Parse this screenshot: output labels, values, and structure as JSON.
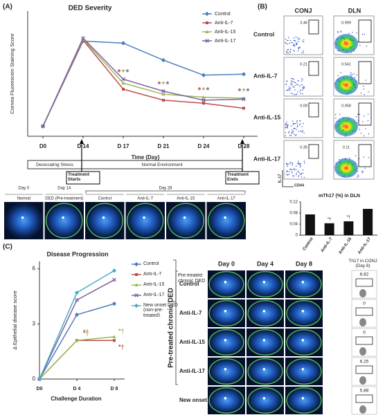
{
  "panel_labels": [
    "(A)",
    "(B)",
    "(C)"
  ],
  "chart_data": [
    {
      "type": "line",
      "title": "DED Severity",
      "y_label": "Cornea Fluorescein Staining Score",
      "x_label": "Time (Day)",
      "categories": [
        "D0",
        "D 14",
        "D 17",
        "D 21",
        "D 24",
        "D 28"
      ],
      "series": [
        {
          "name": "Control",
          "color": "#4a7ebb",
          "values": [
            1,
            9.5,
            9.3,
            7.6,
            6.1,
            6.2
          ]
        },
        {
          "name": "Anti-IL-7",
          "color": "#be4b48",
          "values": [
            1,
            9.6,
            4.7,
            3.6,
            3.3,
            2.8
          ]
        },
        {
          "name": "Anti-IL-15",
          "color": "#98b954",
          "values": [
            1,
            9.7,
            5.3,
            4.2,
            3.9,
            3.8
          ]
        },
        {
          "name": "Anti-IL-17",
          "color": "#7d5fa0",
          "values": [
            1,
            9.8,
            5.7,
            4.5,
            3.6,
            3.7
          ]
        }
      ],
      "ylim": [
        0,
        12.5
      ],
      "yticks": [],
      "annotation": "*",
      "legend": "upper right"
    },
    {
      "type": "bar",
      "title": "mTh17 (%) in DLN",
      "categories": [
        "Control",
        "Anti-IL-7",
        "Anti-IL-15",
        "Anti-IL-17"
      ],
      "values": [
        0.075,
        0.043,
        0.05,
        0.095
      ],
      "color": "#111111",
      "ylim": [
        0,
        0.12
      ],
      "yticks": [
        0,
        0.04,
        0.08,
        0.12
      ],
      "annotation": "*†"
    },
    {
      "type": "line",
      "title": "Disease Progression",
      "y_label": "Δ Epithelial disease score",
      "x_label": "Challenge Duration",
      "categories": [
        "D0",
        "D 4",
        "D 8"
      ],
      "series": [
        {
          "name": "Control",
          "color": "#4a7ebb",
          "values": [
            0,
            3.5,
            4.1
          ]
        },
        {
          "name": "Anti-IL-7",
          "color": "#be4b48",
          "values": [
            0,
            2.1,
            2.1
          ]
        },
        {
          "name": "Anti-IL-15",
          "color": "#98b954",
          "values": [
            0,
            2.1,
            2.3
          ]
        },
        {
          "name": "Anti-IL-17",
          "color": "#7d5fa0",
          "values": [
            0,
            4.3,
            5.4
          ]
        },
        {
          "name": "New onset DED (non-pre-treated)",
          "color": "#4bacc6",
          "values": [
            0,
            4.7,
            5.9
          ]
        }
      ],
      "ylim": [
        0,
        6.4
      ],
      "yticks": [
        0,
        3,
        6
      ],
      "legend_group": "Pre-treated chronic DED",
      "annotation": "*†",
      "legend": "upper right"
    }
  ],
  "timeline": {
    "phases": [
      "Desiccating Stress",
      "Normal Environment"
    ],
    "events": [
      "Treatment Starts",
      "Treatment Ends"
    ]
  },
  "eye_strip": {
    "days": [
      "Day 0",
      "Day 14",
      "Day 28"
    ],
    "labels": [
      "Normal",
      "DED (Pre-treatment)",
      "Control",
      "Anti-IL-7",
      "Anti-IL-15",
      "Anti-IL-17"
    ]
  },
  "flow": {
    "columns": [
      "CONJ",
      "DLN"
    ],
    "gate_note": "CD4 Gated",
    "y_axis": "IL-17",
    "x_axis": "CD44",
    "rows": [
      {
        "label": "Control",
        "conj": "3.46",
        "dln": "0.999"
      },
      {
        "label": "Anti-IL-7",
        "conj": "0.21",
        "dln": "0.541"
      },
      {
        "label": "Anti-IL-15",
        "conj": "0.09",
        "dln": "0.058"
      },
      {
        "label": "Anti-IL-17",
        "conj": "0.35",
        "dln": "0.11"
      }
    ]
  },
  "images_c": {
    "columns": [
      "Day 0",
      "Day 4",
      "Day 8",
      "Th17 in CONJ (Day 8)"
    ],
    "group": "Pre-treated chronic DED",
    "rows": [
      {
        "label": "Control",
        "th17": "8.82"
      },
      {
        "label": "Anti-IL-7",
        "th17": "0"
      },
      {
        "label": "Anti-IL-15",
        "th17": "0"
      },
      {
        "label": "Anti-IL-17",
        "th17": "6.25"
      },
      {
        "label": "New onset",
        "th17": "5.88"
      }
    ]
  }
}
